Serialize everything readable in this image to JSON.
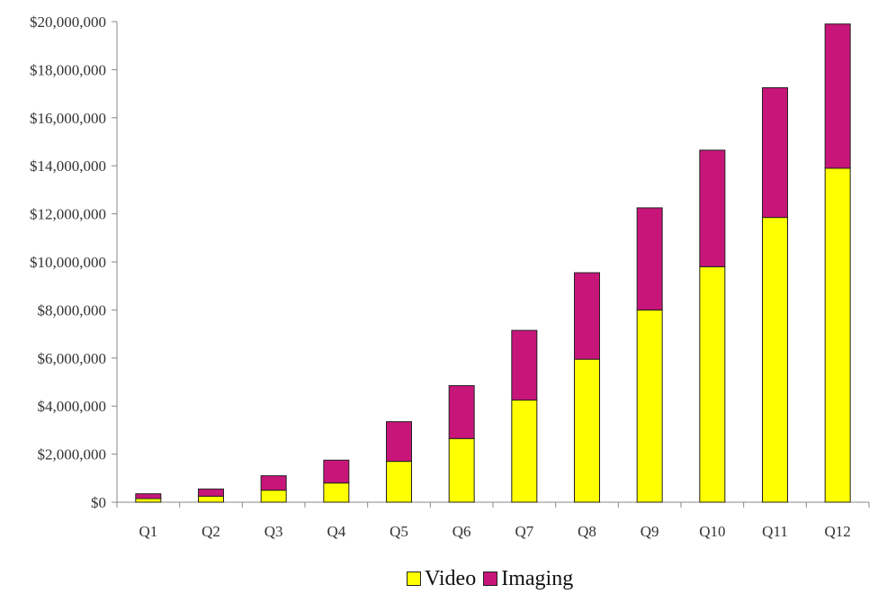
{
  "chart_data": {
    "type": "bar",
    "stacked": true,
    "title": "",
    "xlabel": "",
    "ylabel": "",
    "categories": [
      "Q1",
      "Q2",
      "Q3",
      "Q4",
      "Q5",
      "Q6",
      "Q7",
      "Q8",
      "Q9",
      "Q10",
      "Q11",
      "Q12"
    ],
    "series": [
      {
        "name": "Video",
        "color": "#FFFF00",
        "values": [
          150000,
          250000,
          500000,
          800000,
          1700000,
          2650000,
          4250000,
          5950000,
          8000000,
          9800000,
          11850000,
          13900000
        ]
      },
      {
        "name": "Imaging",
        "color": "#C8157A",
        "values": [
          200000,
          300000,
          600000,
          950000,
          1650000,
          2200000,
          2900000,
          3600000,
          4250000,
          4850000,
          5400000,
          6000000
        ]
      }
    ],
    "ylim": [
      0,
      20000000
    ],
    "yticks": [
      0,
      2000000,
      4000000,
      6000000,
      8000000,
      10000000,
      12000000,
      14000000,
      16000000,
      18000000,
      20000000
    ],
    "ytick_labels": [
      "$0",
      "$2,000,000",
      "$4,000,000",
      "$6,000,000",
      "$8,000,000",
      "$10,000,000",
      "$12,000,000",
      "$14,000,000",
      "$16,000,000",
      "$18,000,000",
      "$20,000,000"
    ],
    "grid": false,
    "legend_position": "bottom"
  }
}
